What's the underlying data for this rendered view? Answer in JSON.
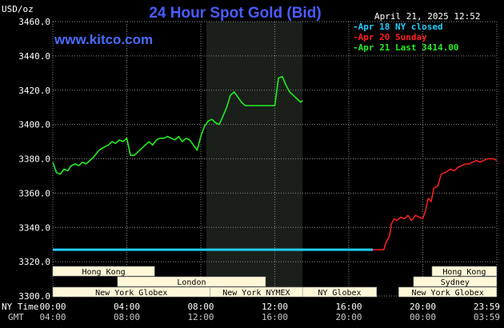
{
  "header": {
    "title": "24 Hour Spot Gold (Bid)",
    "unit": "USD/oz",
    "timestamp": "April 21, 2025 12:52",
    "website": "www.kitco.com"
  },
  "legend": [
    {
      "label": "Apr 18 NY closed",
      "color": "#22ccff"
    },
    {
      "label": "Apr 20 Sunday",
      "color": "#ff2020"
    },
    {
      "label": "Apr 21 Last 3414.00",
      "color": "#22ee22"
    }
  ],
  "time_axis": {
    "ny_label": "NY Time",
    "gmt_label": "GMT",
    "ny_ticks": [
      "00:00",
      "04:00",
      "08:00",
      "12:00",
      "16:00",
      "20:00",
      "23:59"
    ],
    "gmt_ticks": [
      "04:00",
      "08:00",
      "12:00",
      "16:00",
      "20:00",
      "00:00",
      "03:59"
    ]
  },
  "markets": [
    {
      "label": "Hong Kong",
      "start": 0,
      "end": 5.5
    },
    {
      "label": "London",
      "start": 3.5,
      "end": 11.5
    },
    {
      "label": "New York Globex",
      "start": 0,
      "end": 8.5
    },
    {
      "label": "New York NYMEX",
      "start": 8.5,
      "end": 13.5
    },
    {
      "label": "NY Globex",
      "start": 13.5,
      "end": 17.5
    },
    {
      "label": "Hong Kong",
      "start": 20.5,
      "end": 23.99
    },
    {
      "label": "Sydney",
      "start": 19.5,
      "end": 23.99
    },
    {
      "label": "New York Globex",
      "start": 18.7,
      "end": 23.99
    }
  ],
  "colors": {
    "background": "#000000",
    "plot_shade": "#1a1f1a",
    "grid": "#8a8a8a",
    "today": "#22ee22",
    "close": "#22ccff",
    "sunday": "#ff2020",
    "market_box": "#fff8d8"
  },
  "chart_data": {
    "type": "line",
    "title": "24 Hour Spot Gold (Bid)",
    "ylabel": "USD/oz",
    "ylim": [
      3300,
      3460
    ],
    "yticks": [
      "3300.0",
      "3320.0",
      "3340.0",
      "3360.0",
      "3380.0",
      "3400.0",
      "3420.0",
      "3440.0",
      "3460.0"
    ],
    "xlim_hours": [
      0,
      24
    ],
    "x_unit": "hours since 00:00 NY time",
    "grid": true,
    "legend_position": "top-right",
    "shaded_region_hours": [
      8.3,
      13.5
    ],
    "series": [
      {
        "name": "Apr 18 NY closed",
        "x": [
          0,
          17.3
        ],
        "y": [
          3327,
          3327
        ]
      },
      {
        "name": "Apr 20 Sunday",
        "x": [
          17.3,
          17.9,
          18.0,
          18.2,
          18.3,
          18.45,
          18.6,
          18.8,
          19.0,
          19.2,
          19.4,
          19.6,
          19.8,
          20.0,
          20.15,
          20.3,
          20.45,
          20.6,
          20.8,
          21.0,
          21.2,
          21.35,
          21.5,
          21.7,
          21.9,
          22.1,
          22.3,
          22.5,
          22.7,
          22.9,
          23.1,
          23.3,
          23.5,
          23.7,
          23.85,
          23.99
        ],
        "y": [
          3327,
          3327,
          3331,
          3335,
          3342,
          3345,
          3344,
          3346,
          3345,
          3347,
          3344,
          3347,
          3346,
          3345,
          3350,
          3357,
          3355,
          3363,
          3364,
          3371,
          3372,
          3373,
          3374,
          3373,
          3375,
          3376,
          3377,
          3377,
          3378,
          3379,
          3378,
          3379,
          3380,
          3380,
          3380,
          3379
        ]
      },
      {
        "name": "Apr 21 Last 3414.00",
        "x": [
          0,
          0.2,
          0.4,
          0.6,
          0.8,
          1.0,
          1.2,
          1.4,
          1.6,
          1.8,
          2.0,
          2.2,
          2.5,
          2.8,
          3.0,
          3.2,
          3.4,
          3.6,
          3.8,
          4.0,
          4.2,
          4.4,
          4.6,
          4.8,
          5.0,
          5.2,
          5.4,
          5.6,
          5.8,
          6.0,
          6.2,
          6.4,
          6.6,
          6.8,
          7.0,
          7.2,
          7.4,
          7.6,
          7.8,
          8.0,
          8.2,
          8.4,
          8.6,
          8.8,
          9.0,
          9.2,
          9.4,
          9.6,
          9.8,
          10.0,
          10.2,
          10.4,
          10.6,
          10.8,
          11.0,
          11.3,
          11.6,
          11.8,
          12.0,
          12.2,
          12.4,
          12.6,
          12.8,
          13.0,
          13.2,
          13.4,
          13.5
        ],
        "y": [
          3378,
          3372,
          3371,
          3374,
          3373,
          3376,
          3377,
          3376,
          3378,
          3377,
          3379,
          3381,
          3385,
          3387,
          3388,
          3390,
          3389,
          3391,
          3390,
          3392,
          3382,
          3382,
          3384,
          3386,
          3388,
          3390,
          3388,
          3391,
          3392,
          3392,
          3393,
          3392,
          3391,
          3393,
          3390,
          3392,
          3391,
          3388,
          3385,
          3393,
          3399,
          3402,
          3403,
          3401,
          3400,
          3405,
          3410,
          3417,
          3419,
          3416,
          3413,
          3411,
          3411,
          3411,
          3411,
          3411,
          3411,
          3411,
          3411,
          3427,
          3428,
          3423,
          3419,
          3417,
          3415,
          3413,
          3414
        ]
      }
    ]
  }
}
